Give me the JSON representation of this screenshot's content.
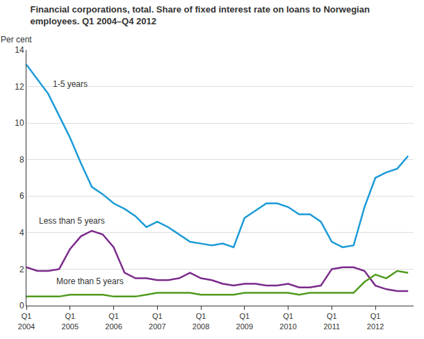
{
  "chart_data": {
    "type": "line",
    "title": "Financial corporations, total. Share of fixed interest rate on loans to Norwegian employees. Q1 2004–Q4 2012",
    "y_label": "Per cent",
    "categories": [
      "Q1 2004",
      null,
      null,
      null,
      "Q1 2005",
      null,
      null,
      null,
      "Q1 2006",
      null,
      null,
      null,
      "Q1 2007",
      null,
      null,
      null,
      "Q1 2008",
      null,
      null,
      null,
      "Q1 2009",
      null,
      null,
      null,
      "Q1 2010",
      null,
      null,
      null,
      "Q1 2011",
      null,
      null,
      null,
      "Q1 2012",
      null,
      null,
      null
    ],
    "series": [
      {
        "name": "1-5 years",
        "color": "#1a9ad6",
        "values": [
          13.2,
          12.4,
          11.6,
          10.4,
          9.2,
          7.8,
          6.5,
          6.1,
          5.6,
          5.3,
          4.9,
          4.3,
          4.6,
          4.3,
          3.9,
          3.5,
          3.4,
          3.3,
          3.4,
          3.2,
          4.8,
          5.2,
          5.6,
          5.6,
          5.4,
          5.0,
          5.0,
          4.6,
          3.5,
          3.2,
          3.3,
          5.4,
          7.0,
          7.3,
          7.5,
          8.2
        ]
      },
      {
        "name": "Less than 5 years",
        "color": "#7b2a8b",
        "values": [
          2.1,
          1.9,
          1.9,
          2.0,
          3.1,
          3.8,
          4.1,
          3.9,
          3.2,
          1.8,
          1.5,
          1.5,
          1.4,
          1.4,
          1.5,
          1.8,
          1.5,
          1.4,
          1.2,
          1.1,
          1.2,
          1.2,
          1.1,
          1.1,
          1.2,
          1.0,
          1.0,
          1.1,
          2.0,
          2.1,
          2.1,
          1.9,
          1.1,
          0.9,
          0.8,
          0.8
        ]
      },
      {
        "name": "More than 5 years",
        "color": "#4f9a1c",
        "values": [
          0.5,
          0.5,
          0.5,
          0.5,
          0.6,
          0.6,
          0.6,
          0.6,
          0.5,
          0.5,
          0.5,
          0.6,
          0.7,
          0.7,
          0.7,
          0.7,
          0.6,
          0.6,
          0.6,
          0.6,
          0.7,
          0.7,
          0.7,
          0.7,
          0.7,
          0.6,
          0.7,
          0.7,
          0.7,
          0.7,
          0.7,
          1.3,
          1.7,
          1.5,
          1.9,
          1.8
        ]
      }
    ],
    "ylim": [
      0,
      14
    ],
    "yticks": [
      0,
      2,
      4,
      6,
      8,
      10,
      12,
      14
    ],
    "grid": true
  }
}
